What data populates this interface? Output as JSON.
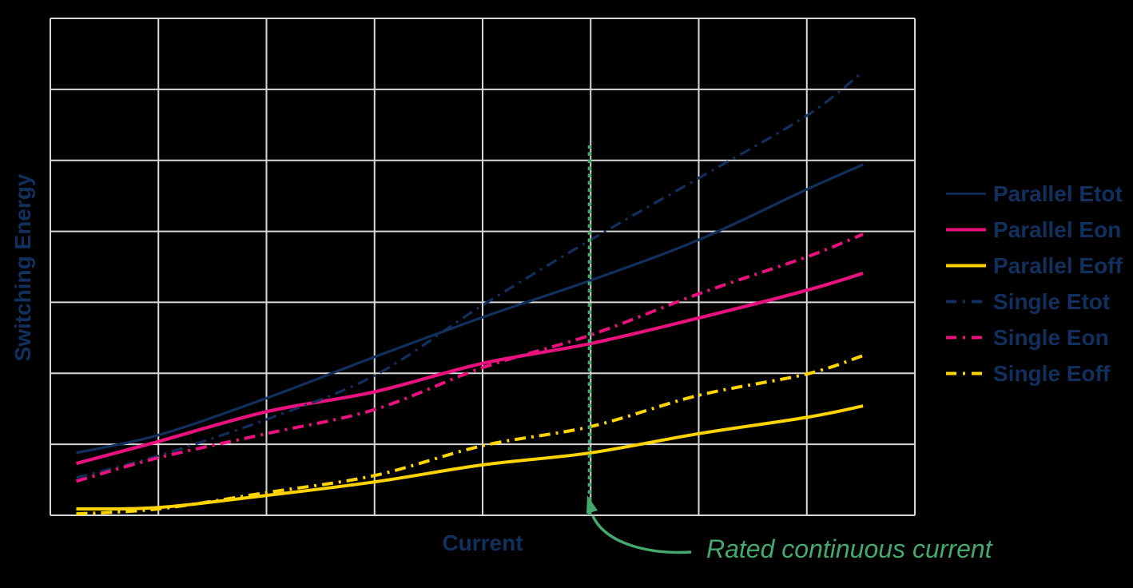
{
  "background_color": "#000000",
  "colors": {
    "navy": "#12305e",
    "magenta": "#e8117d",
    "yellow": "#ffd400",
    "green": "#44a96d",
    "grid": "#d8d8d8"
  },
  "chart_data": {
    "type": "line",
    "title": "",
    "xlabel": "Current",
    "ylabel": "Switching Energy",
    "axis_label_color": "#12305e",
    "grid": true,
    "grid_color": "#d8d8d8",
    "x_axis": {
      "range": [
        0,
        8
      ],
      "gridline_step": 1,
      "tick_labels_shown": false
    },
    "y_axis": {
      "range": [
        0,
        7
      ],
      "gridline_step": 1,
      "tick_labels_shown": false
    },
    "x": [
      0.24,
      1.0,
      2.0,
      3.0,
      4.0,
      5.0,
      6.0,
      7.0,
      7.52
    ],
    "series": [
      {
        "name": "Parallel Etot",
        "color": "#12305e",
        "style": "solid",
        "line_width": 3.2,
        "values": [
          0.88,
          1.13,
          1.65,
          2.23,
          2.79,
          3.31,
          3.88,
          4.59,
          4.94
        ]
      },
      {
        "name": "Parallel Eon",
        "color": "#e8117d",
        "style": "solid",
        "line_width": 4.2,
        "values": [
          0.73,
          1.04,
          1.46,
          1.74,
          2.14,
          2.42,
          2.78,
          3.17,
          3.41
        ]
      },
      {
        "name": "Parallel Eoff",
        "color": "#ffd400",
        "style": "solid",
        "line_width": 4.0,
        "values": [
          0.09,
          0.11,
          0.28,
          0.47,
          0.71,
          0.88,
          1.15,
          1.38,
          1.54
        ]
      },
      {
        "name": "Single Etot",
        "color": "#12305e",
        "style": "dashdot",
        "line_width": 3.2,
        "values": [
          0.53,
          0.84,
          1.35,
          1.97,
          2.96,
          3.88,
          4.75,
          5.63,
          6.25
        ]
      },
      {
        "name": "Single Eon",
        "color": "#e8117d",
        "style": "dashdot",
        "line_width": 4.0,
        "values": [
          0.48,
          0.81,
          1.15,
          1.49,
          2.08,
          2.54,
          3.12,
          3.64,
          3.96
        ]
      },
      {
        "name": "Single Eoff",
        "color": "#ffd400",
        "style": "dashdot",
        "line_width": 4.0,
        "values": [
          0.02,
          0.09,
          0.32,
          0.56,
          0.98,
          1.25,
          1.69,
          1.99,
          2.25
        ]
      }
    ],
    "legend": {
      "position": "right-of-plot",
      "text_color": "#12305e"
    },
    "annotation": {
      "label": "Rated continuous current",
      "x": 4.99,
      "line_bottom": 0.0,
      "line_top": 5.21,
      "style": "dotted",
      "color": "#44a96d",
      "text_color": "#44a96d"
    }
  }
}
